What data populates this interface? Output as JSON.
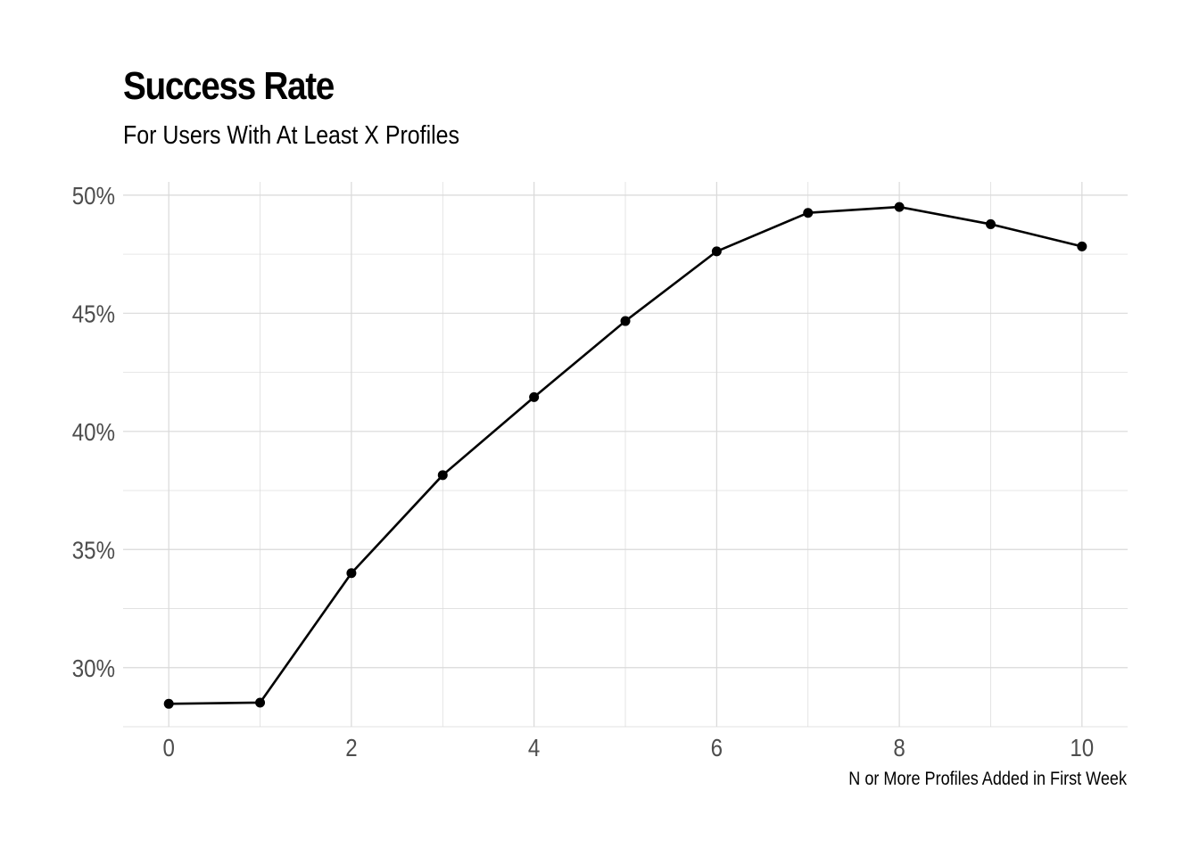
{
  "chart_data": {
    "type": "line",
    "title": "Success Rate",
    "subtitle": "For Users With At Least X Profiles",
    "xlabel": "N or More Profiles Added in First Week",
    "ylabel": "",
    "x": [
      0,
      1,
      2,
      3,
      4,
      5,
      6,
      7,
      8,
      9,
      10
    ],
    "series": [
      {
        "values": [
          28.47,
          28.52,
          34.0,
          38.15,
          41.45,
          44.67,
          47.62,
          49.25,
          49.5,
          48.77,
          47.83
        ],
        "color": "#000000"
      }
    ],
    "xlim": [
      -0.5,
      10.5
    ],
    "ylim": [
      27.5,
      50.56
    ],
    "x_ticks": [
      0,
      2,
      4,
      6,
      8,
      10
    ],
    "x_tick_labels": [
      "0",
      "2",
      "4",
      "6",
      "8",
      "10"
    ],
    "y_ticks": [
      30,
      35,
      40,
      45,
      50
    ],
    "y_tick_labels": [
      "30%",
      "35%",
      "40%",
      "45%",
      "50%"
    ],
    "grid": true,
    "legend": "none",
    "colors": {
      "grid": "#d9d9d9",
      "tick_text": "#4d4d4d",
      "line": "#000000"
    }
  }
}
